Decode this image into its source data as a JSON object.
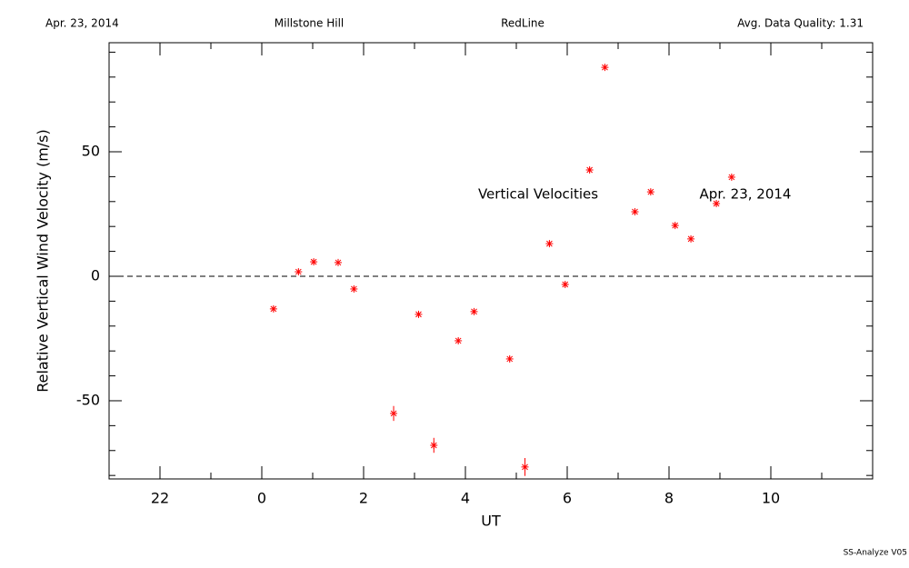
{
  "chart_data": {
    "type": "scatter",
    "header": [
      "Apr. 23, 2014",
      "Millstone Hill",
      "RedLine",
      "Avg. Data Quality: 1.31"
    ],
    "annotations": [
      "Vertical Velocities",
      "Apr. 23, 2014"
    ],
    "x_label": "UT",
    "y_label": "Relative Vertical Wind Velocity (m/s)",
    "footer": "SS-Analyze V05",
    "xlim": [
      -3,
      12
    ],
    "ylim": [
      -81.4,
      93.8
    ],
    "xticks": [
      {
        "value": -2,
        "label": "22"
      },
      0,
      2,
      4,
      6,
      8,
      10
    ],
    "yticks": [
      -50,
      0,
      50
    ],
    "reference_line": 0,
    "color": "#ff0000",
    "x": [
      0.23,
      0.72,
      1.02,
      1.5,
      1.81,
      2.59,
      3.08,
      3.38,
      3.86,
      4.17,
      4.87,
      5.17,
      5.65,
      5.96,
      6.44,
      6.74,
      7.33,
      7.64,
      8.12,
      8.43,
      8.93,
      9.23
    ],
    "values": [
      -13.1,
      1.8,
      5.8,
      5.5,
      -5.1,
      -55.1,
      -15.3,
      -67.9,
      -25.9,
      -14.2,
      -33.2,
      -76.6,
      13.1,
      -3.3,
      42.7,
      83.9,
      25.9,
      33.9,
      20.4,
      15.0,
      29.2,
      39.8
    ],
    "errors": [
      1,
      1,
      1,
      1,
      1,
      3,
      1,
      3,
      1,
      1,
      1,
      3.6,
      1,
      1,
      1,
      1,
      1,
      1,
      1,
      1,
      1,
      1
    ]
  }
}
